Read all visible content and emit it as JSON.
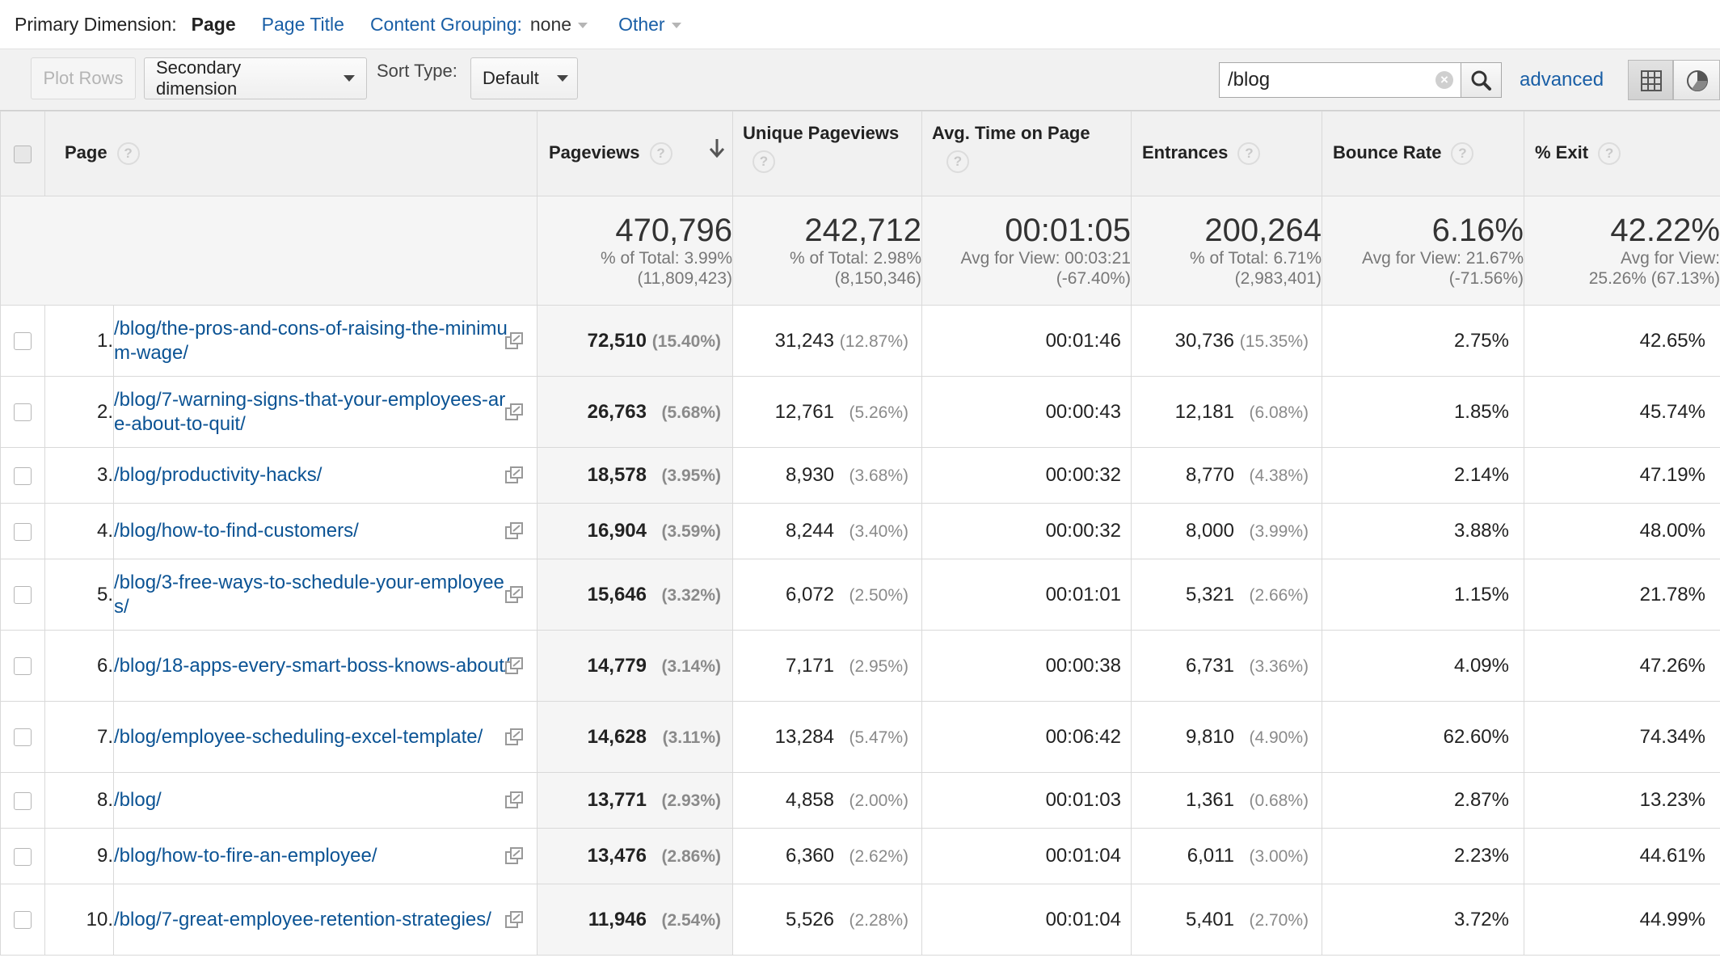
{
  "dimension_bar": {
    "label": "Primary Dimension:",
    "active": "Page",
    "options": [
      "Page Title",
      "Content Grouping:"
    ],
    "content_grouping_value": "none",
    "other": "Other"
  },
  "toolbar": {
    "plot_rows": "Plot Rows",
    "secondary_dimension": "Secondary dimension",
    "sort_type_label": "Sort Type:",
    "sort_type_value": "Default",
    "search_value": "/blog",
    "advanced": "advanced"
  },
  "columns": {
    "page": "Page",
    "pageviews": "Pageviews",
    "unique_pageviews": "Unique Pageviews",
    "avg_time": "Avg. Time on Page",
    "entrances": "Entrances",
    "bounce_rate": "Bounce Rate",
    "exit": "% Exit"
  },
  "summary": {
    "pageviews": {
      "value": "470,796",
      "l1": "% of Total: 3.99%",
      "l2": "(11,809,423)"
    },
    "unique_pageviews": {
      "value": "242,712",
      "l1": "% of Total: 2.98%",
      "l2": "(8,150,346)"
    },
    "avg_time": {
      "value": "00:01:05",
      "l1": "Avg for View: 00:03:21",
      "l2": "(-67.40%)"
    },
    "entrances": {
      "value": "200,264",
      "l1": "% of Total: 6.71%",
      "l2": "(2,983,401)"
    },
    "bounce_rate": {
      "value": "6.16%",
      "l1": "Avg for View: 21.67%",
      "l2": "(-71.56%)"
    },
    "exit": {
      "value": "42.22%",
      "l1": "Avg for View:",
      "l2": "25.26% (67.13%)"
    }
  },
  "rows": [
    {
      "idx": "1.",
      "page": "/blog/the-pros-and-cons-of-raising-the-minimum-wage/",
      "pv": "72,510",
      "pv_pct": "(15.40%)",
      "upv": "31,243",
      "upv_pct": "(12.87%)",
      "time": "00:01:46",
      "ent": "30,736",
      "ent_pct": "(15.35%)",
      "bounce": "2.75%",
      "exit": "42.65%"
    },
    {
      "idx": "2.",
      "page": "/blog/7-warning-signs-that-your-employees-are-about-to-quit/",
      "pv": "26,763",
      "pv_pct": "(5.68%)",
      "upv": "12,761",
      "upv_pct": "(5.26%)",
      "time": "00:00:43",
      "ent": "12,181",
      "ent_pct": "(6.08%)",
      "bounce": "1.85%",
      "exit": "45.74%"
    },
    {
      "idx": "3.",
      "page": "/blog/productivity-hacks/",
      "pv": "18,578",
      "pv_pct": "(3.95%)",
      "upv": "8,930",
      "upv_pct": "(3.68%)",
      "time": "00:00:32",
      "ent": "8,770",
      "ent_pct": "(4.38%)",
      "bounce": "2.14%",
      "exit": "47.19%"
    },
    {
      "idx": "4.",
      "page": "/blog/how-to-find-customers/",
      "pv": "16,904",
      "pv_pct": "(3.59%)",
      "upv": "8,244",
      "upv_pct": "(3.40%)",
      "time": "00:00:32",
      "ent": "8,000",
      "ent_pct": "(3.99%)",
      "bounce": "3.88%",
      "exit": "48.00%"
    },
    {
      "idx": "5.",
      "page": "/blog/3-free-ways-to-schedule-your-employees/",
      "pv": "15,646",
      "pv_pct": "(3.32%)",
      "upv": "6,072",
      "upv_pct": "(2.50%)",
      "time": "00:01:01",
      "ent": "5,321",
      "ent_pct": "(2.66%)",
      "bounce": "1.15%",
      "exit": "21.78%"
    },
    {
      "idx": "6.",
      "page": "/blog/18-apps-every-smart-boss-knows-about/",
      "pv": "14,779",
      "pv_pct": "(3.14%)",
      "upv": "7,171",
      "upv_pct": "(2.95%)",
      "time": "00:00:38",
      "ent": "6,731",
      "ent_pct": "(3.36%)",
      "bounce": "4.09%",
      "exit": "47.26%"
    },
    {
      "idx": "7.",
      "page": "/blog/employee-scheduling-excel-template/",
      "pv": "14,628",
      "pv_pct": "(3.11%)",
      "upv": "13,284",
      "upv_pct": "(5.47%)",
      "time": "00:06:42",
      "ent": "9,810",
      "ent_pct": "(4.90%)",
      "bounce": "62.60%",
      "exit": "74.34%"
    },
    {
      "idx": "8.",
      "page": "/blog/",
      "pv": "13,771",
      "pv_pct": "(2.93%)",
      "upv": "4,858",
      "upv_pct": "(2.00%)",
      "time": "00:01:03",
      "ent": "1,361",
      "ent_pct": "(0.68%)",
      "bounce": "2.87%",
      "exit": "13.23%"
    },
    {
      "idx": "9.",
      "page": "/blog/how-to-fire-an-employee/",
      "pv": "13,476",
      "pv_pct": "(2.86%)",
      "upv": "6,360",
      "upv_pct": "(2.62%)",
      "time": "00:01:04",
      "ent": "6,011",
      "ent_pct": "(3.00%)",
      "bounce": "2.23%",
      "exit": "44.61%"
    },
    {
      "idx": "10.",
      "page": "/blog/7-great-employee-retention-strategies/",
      "pv": "11,946",
      "pv_pct": "(2.54%)",
      "upv": "5,526",
      "upv_pct": "(2.28%)",
      "time": "00:01:04",
      "ent": "5,401",
      "ent_pct": "(2.70%)",
      "bounce": "3.72%",
      "exit": "44.99%"
    }
  ]
}
